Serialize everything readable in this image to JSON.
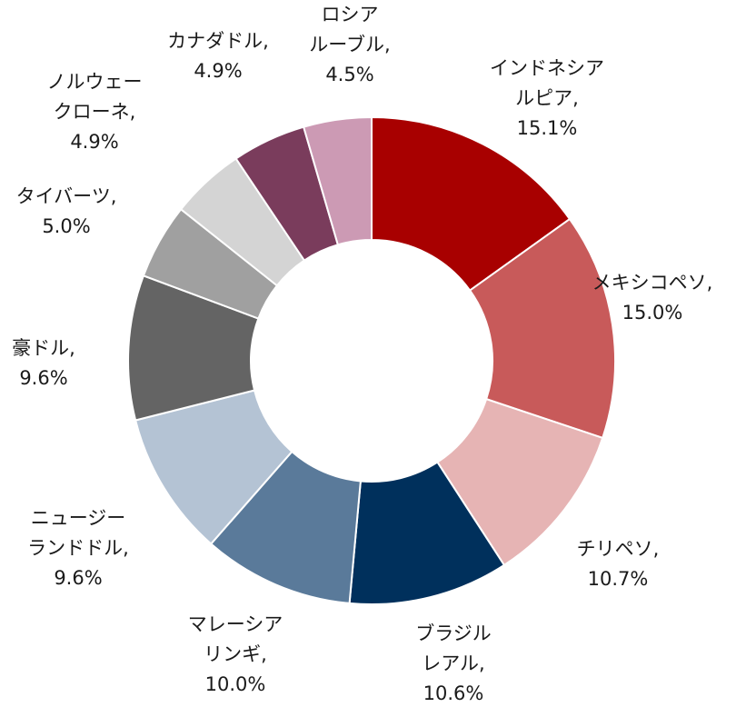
{
  "chart_data": {
    "type": "pie",
    "variant": "donut",
    "title": "",
    "legend": "none",
    "slices": [
      {
        "label_lines": [
          "インドネシア",
          "ルピア,"
        ],
        "value_label": "15.1%",
        "value": 15.1,
        "color": "#a80000"
      },
      {
        "label_lines": [
          "メキシコペソ,"
        ],
        "value_label": "15.0%",
        "value": 15.0,
        "color": "#c85a5a"
      },
      {
        "label_lines": [
          "チリペソ,"
        ],
        "value_label": "10.7%",
        "value": 10.7,
        "color": "#e6b4b4"
      },
      {
        "label_lines": [
          "ブラジル",
          "レアル,"
        ],
        "value_label": "10.6%",
        "value": 10.6,
        "color": "#00305c"
      },
      {
        "label_lines": [
          "マレーシア",
          "リンギ,"
        ],
        "value_label": "10.0%",
        "value": 10.0,
        "color": "#5a7a9a"
      },
      {
        "label_lines": [
          "ニュージー",
          "ランドドル,"
        ],
        "value_label": "9.6%",
        "value": 9.6,
        "color": "#b4c3d4"
      },
      {
        "label_lines": [
          "豪ドル,"
        ],
        "value_label": "9.6%",
        "value": 9.6,
        "color": "#646464"
      },
      {
        "label_lines": [
          "タイバーツ,"
        ],
        "value_label": "5.0%",
        "value": 5.0,
        "color": "#a0a0a0"
      },
      {
        "label_lines": [
          "ノルウェー",
          "クローネ,"
        ],
        "value_label": "4.9%",
        "value": 4.9,
        "color": "#d4d4d4"
      },
      {
        "label_lines": [
          "カナダドル,"
        ],
        "value_label": "4.9%",
        "value": 4.9,
        "color": "#7a3c5c"
      },
      {
        "label_lines": [
          "ロシア",
          "ルーブル,"
        ],
        "value_label": "4.5%",
        "value": 4.5,
        "color": "#cc9ab4"
      }
    ]
  }
}
